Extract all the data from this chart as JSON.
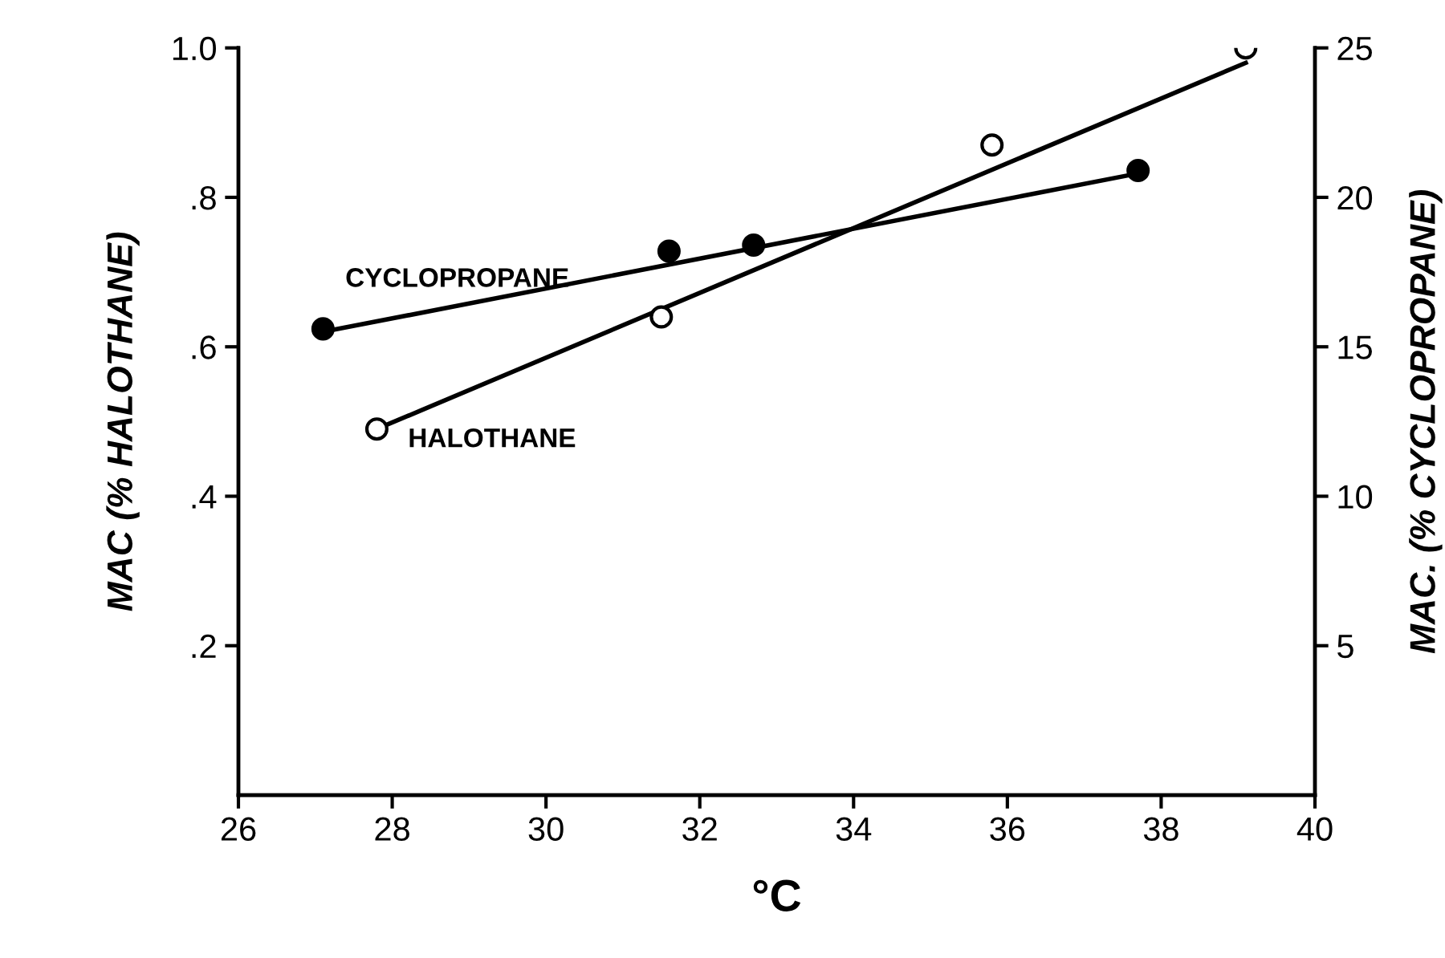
{
  "chart_data": {
    "type": "scatter",
    "xlabel": "°C",
    "ylabel": "MAC (% HALOTHANE)",
    "y2label": "MAC. (% CYCLOPROPANE)",
    "xlim": [
      26,
      40
    ],
    "xticks": [
      26,
      28,
      30,
      32,
      34,
      36,
      38,
      40
    ],
    "ylim": [
      0,
      1.0
    ],
    "yticks": [
      {
        "value": 0.2,
        "label": ".2"
      },
      {
        "value": 0.4,
        "label": ".4"
      },
      {
        "value": 0.6,
        "label": ".6"
      },
      {
        "value": 0.8,
        "label": ".8"
      },
      {
        "value": 1.0,
        "label": "1.0"
      }
    ],
    "y2lim": [
      0,
      25
    ],
    "y2ticks": [
      5,
      10,
      15,
      20,
      25
    ],
    "grid": false,
    "legend": false,
    "series": [
      {
        "name": "CYCLOPROPANE",
        "axis": "y2",
        "marker": "circle",
        "color": "#000000",
        "x": [
          27.1,
          31.6,
          32.7,
          37.7
        ],
        "values": [
          15.6,
          18.2,
          18.4,
          20.9
        ]
      },
      {
        "name": "HALOTHANE",
        "axis": "y",
        "marker": "circle",
        "color": "#000000",
        "x": [
          27.8,
          31.5,
          35.8,
          39.1
        ],
        "values": [
          0.49,
          0.64,
          0.87,
          1.0
        ]
      },
      {
        "type": "line",
        "axis": "y2",
        "color": "#000000",
        "line_style": "solid",
        "marker": "none",
        "x": [
          27.1,
          37.7
        ],
        "values": [
          15.5,
          20.8
        ]
      },
      {
        "type": "line",
        "axis": "y",
        "color": "#000000",
        "line_style": "solid",
        "marker": "none",
        "x": [
          27.8,
          39.1
        ],
        "values": [
          0.49,
          0.98
        ]
      }
    ]
  }
}
